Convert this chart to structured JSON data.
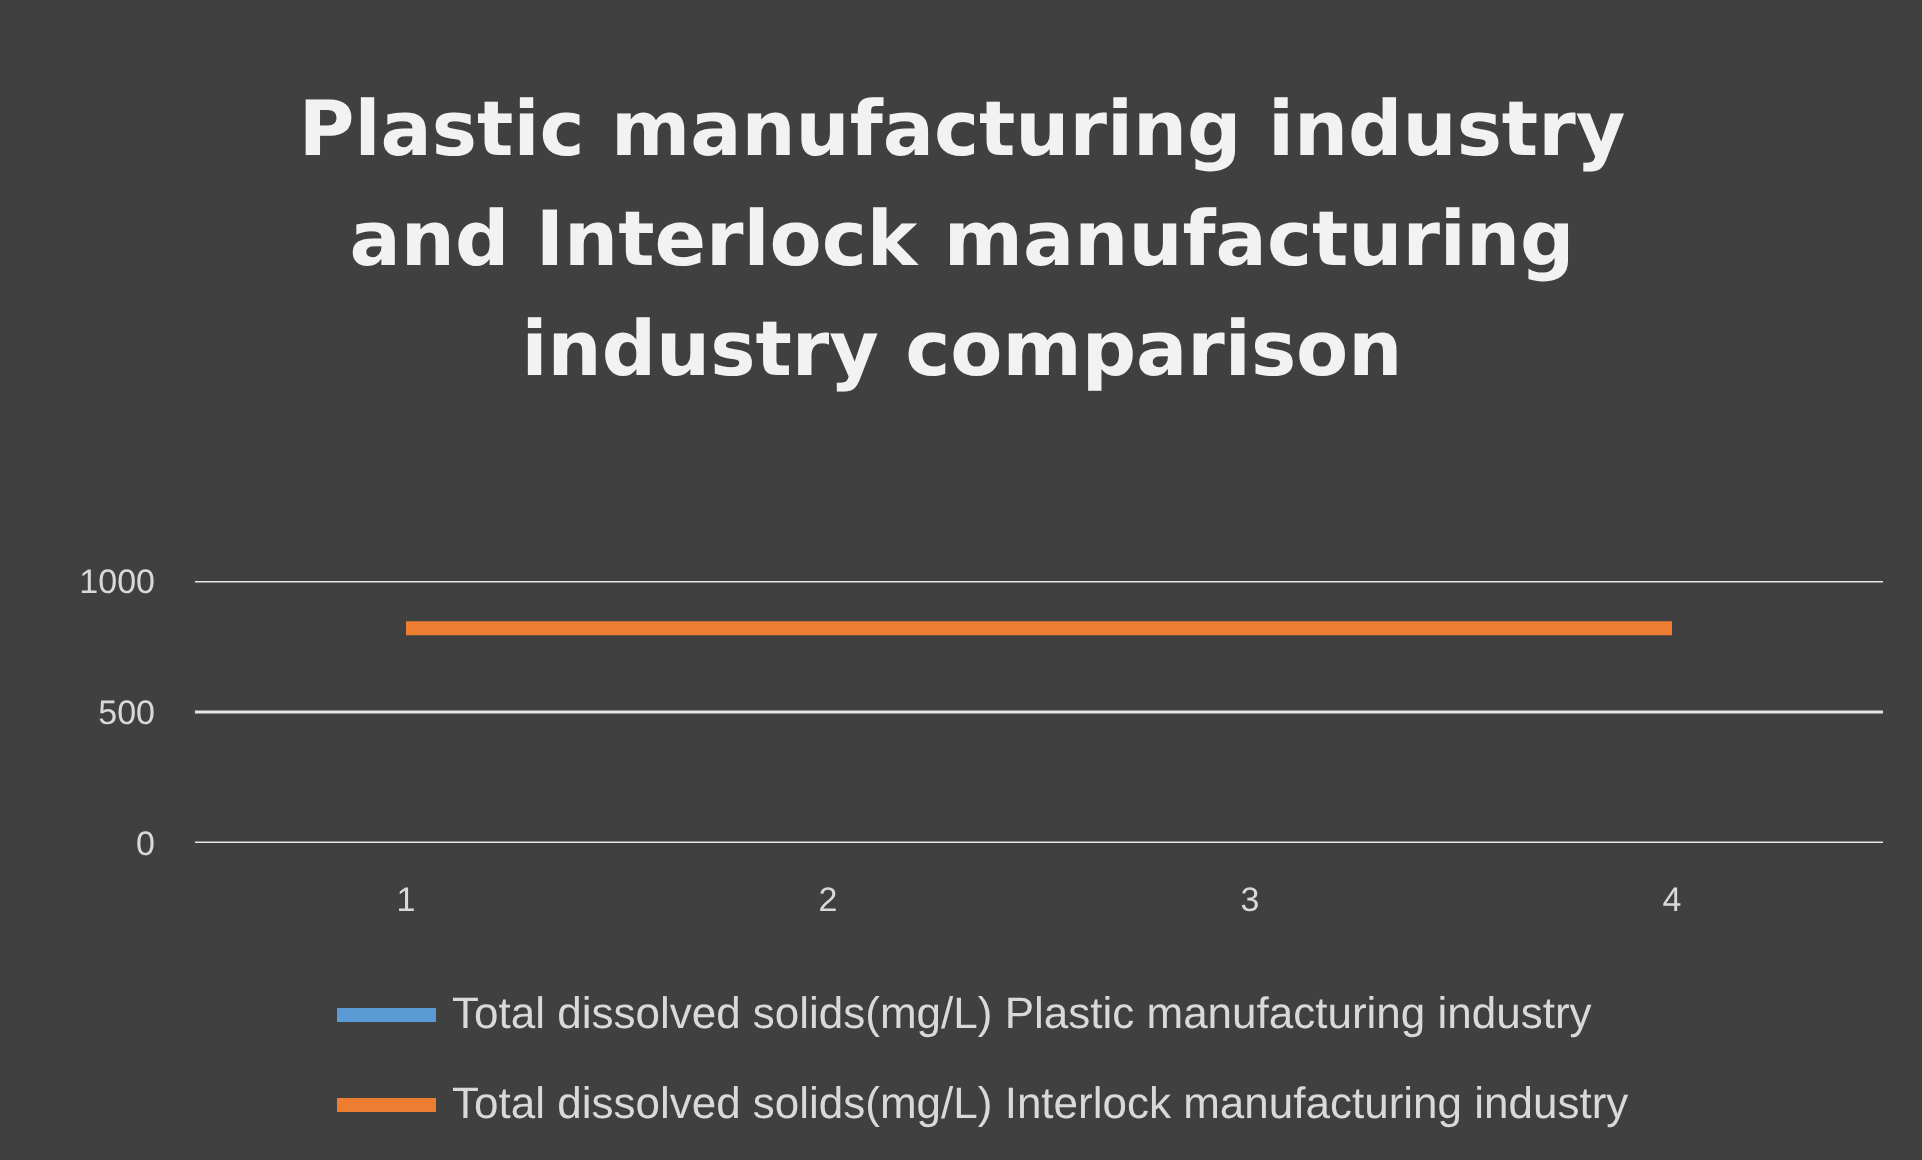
{
  "chart_data": {
    "type": "line",
    "title": "Plastic manufacturing industry and Interlock manufacturing industry comparison",
    "categories": [
      "1",
      "2",
      "3",
      "4"
    ],
    "series": [
      {
        "name": "Total dissolved solids(mg/L) Plastic manufacturing industry",
        "color": "#5b9bd5",
        "values": [
          null,
          null,
          null,
          null
        ]
      },
      {
        "name": "Total dissolved solids(mg/L) Interlock manufacturing industry",
        "color": "#ed7d31",
        "values": [
          820,
          820,
          820,
          820
        ]
      }
    ],
    "ylim": [
      0,
      1000
    ],
    "yticks": [
      0,
      500,
      1000
    ],
    "grid": "y",
    "legend": "bottom",
    "line_style": "solid"
  }
}
